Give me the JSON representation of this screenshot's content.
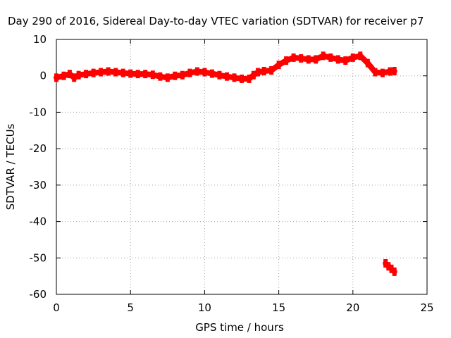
{
  "chart_data": {
    "type": "scatter",
    "title": "Day 290 of 2016, Sidereal Day-to-day VTEC variation (SDTVAR) for receiver p7",
    "xlabel": "GPS time / hours",
    "ylabel": "SDTVAR / TECUs",
    "xlim": [
      0,
      25
    ],
    "ylim": [
      -60,
      10
    ],
    "xticks": [
      "0",
      "5",
      "10",
      "15",
      "20",
      "25"
    ],
    "yticks": [
      "10",
      "0",
      "-10",
      "-20",
      "-30",
      "-40",
      "-50",
      "-60"
    ],
    "grid": true,
    "series": [
      {
        "color": "#ff0000",
        "x": [
          0.0,
          0.5,
          0.9,
          1.2,
          1.5,
          2.0,
          2.5,
          3.0,
          3.5,
          4.0,
          4.5,
          5.0,
          5.5,
          6.0,
          6.5,
          7.0,
          7.5,
          8.0,
          8.5,
          9.0,
          9.5,
          10.0,
          10.5,
          11.0,
          11.5,
          12.0,
          12.5,
          13.0,
          13.3,
          13.6,
          14.0,
          14.5,
          15.0,
          15.5,
          16.0,
          16.5,
          17.0,
          17.5,
          18.0,
          18.5,
          19.0,
          19.5,
          20.0,
          20.5,
          21.0,
          21.5,
          22.0,
          22.5,
          22.8
        ],
        "y": [
          -0.5,
          0.0,
          0.5,
          -0.5,
          0.2,
          0.5,
          0.8,
          1.0,
          1.2,
          1.0,
          0.8,
          0.6,
          0.5,
          0.5,
          0.3,
          -0.2,
          -0.5,
          0.0,
          0.2,
          0.8,
          1.2,
          1.0,
          0.6,
          0.2,
          -0.2,
          -0.5,
          -0.8,
          -0.8,
          0.2,
          1.0,
          1.3,
          1.5,
          3.0,
          4.2,
          5.0,
          4.8,
          4.5,
          4.5,
          5.5,
          5.0,
          4.5,
          4.2,
          5.0,
          5.5,
          3.5,
          1.0,
          0.8,
          1.2,
          1.3
        ]
      },
      {
        "color": "#ff0000",
        "x": [
          22.2,
          22.4,
          22.6,
          22.8
        ],
        "y": [
          -51.5,
          -52.3,
          -53.0,
          -53.8
        ]
      }
    ]
  }
}
